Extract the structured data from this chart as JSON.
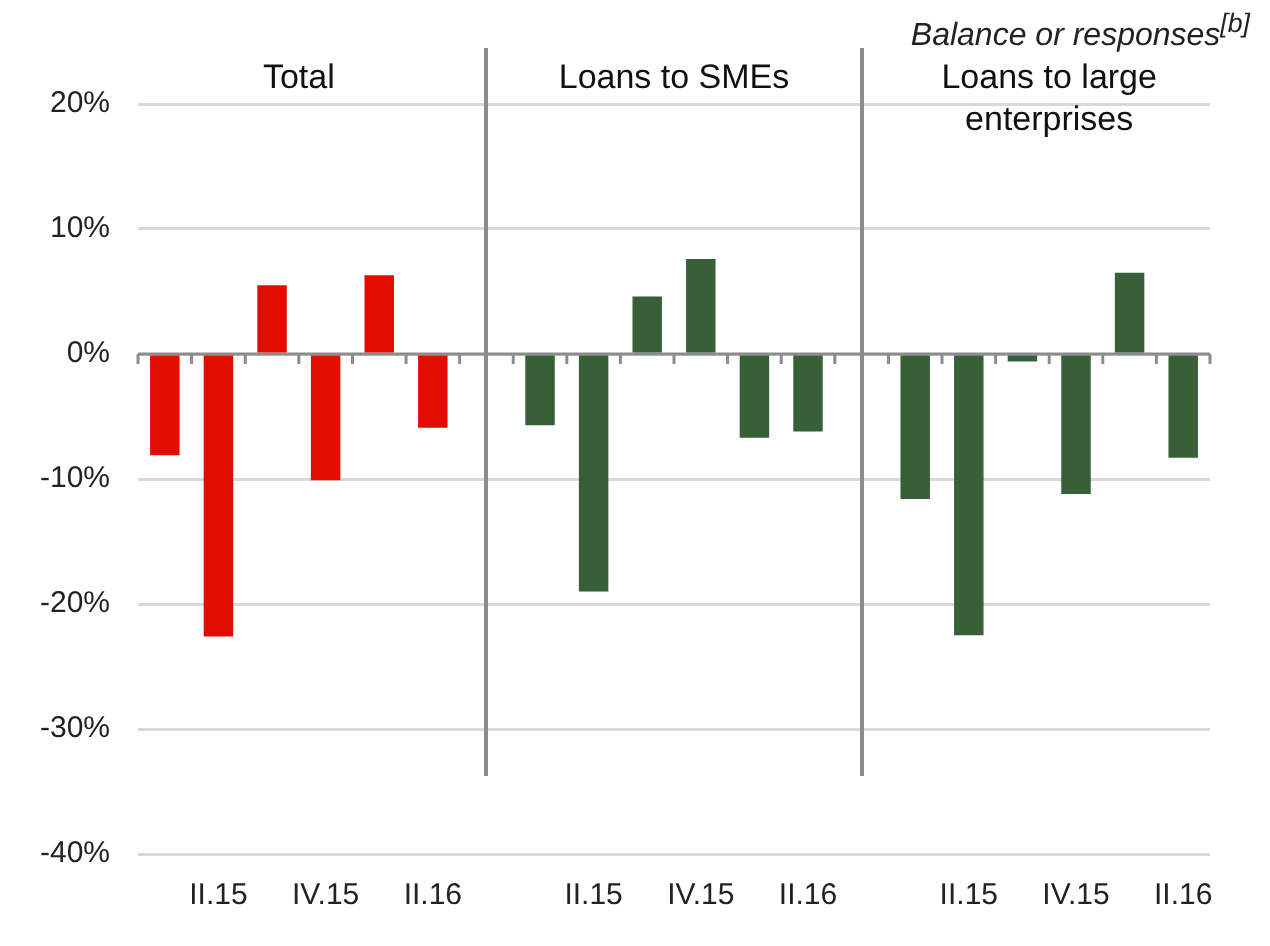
{
  "chart_data": {
    "type": "bar",
    "ylabel": "Balance or responses$^{[b]}$",
    "annotations": [
      "Total",
      "Loans to SMEs",
      "Loans to large enterprises"
    ],
    "categories": [
      null,
      "II.15",
      null,
      "IV.15",
      null,
      "II.16",
      null,
      null,
      "II.15",
      null,
      "IV.15",
      null,
      "II.16",
      null,
      null,
      "II.15",
      null,
      "IV.15",
      null,
      "II.16"
    ],
    "values": [
      -8.1,
      -22.6,
      5.5,
      -10.1,
      6.3,
      -5.9,
      null,
      -5.7,
      -19.0,
      4.6,
      7.6,
      -6.7,
      -6.2,
      null,
      -11.6,
      -22.5,
      -0.6,
      -11.2,
      6.5,
      -8.3
    ],
    "colors": [
      "#e00d00",
      "#e00d00",
      "#e00d00",
      "#e00d00",
      "#e00d00",
      "#e00d00",
      "#ffffff",
      "#376038",
      "#376038",
      "#376038",
      "#376038",
      "#376038",
      "#376038",
      "#ffffff",
      "#376038",
      "#376038",
      "#376038",
      "#376038",
      "#376038",
      "#376038"
    ],
    "ylim": [
      -40,
      20
    ],
    "yticks": [
      {
        "value": -40,
        "label": "-40%"
      },
      {
        "value": -30,
        "label": "-30%"
      },
      {
        "value": -20,
        "label": "-20%"
      },
      {
        "value": -10,
        "label": "-10%"
      },
      {
        "value": 0,
        "label": "0%"
      },
      {
        "value": 10,
        "label": "10%"
      },
      {
        "value": 20,
        "label": "20%"
      }
    ],
    "grid": "y",
    "legend": false
  }
}
